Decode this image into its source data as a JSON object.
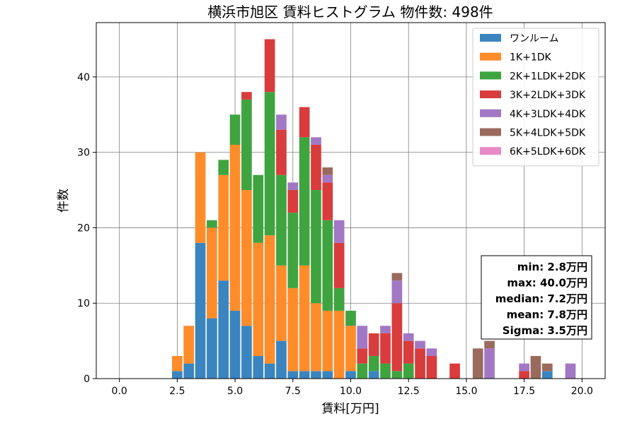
{
  "chart_data": {
    "type": "bar",
    "stacked": true,
    "title": "横浜市旭区 賃料ヒストグラム 物件数: 498件",
    "xlabel": "賃料[万円]",
    "ylabel": "件数",
    "xlim": [
      -1.0,
      21.0
    ],
    "ylim": [
      0,
      47.2
    ],
    "xticks": [
      0.0,
      2.5,
      5.0,
      7.5,
      10.0,
      12.5,
      15.0,
      17.5,
      20.0
    ],
    "xtick_labels": [
      "0.0",
      "2.5",
      "5.0",
      "7.5",
      "10.0",
      "12.5",
      "15.0",
      "17.5",
      "20.0"
    ],
    "yticks": [
      0,
      10,
      20,
      30,
      40
    ],
    "ytick_labels": [
      "0",
      "10",
      "20",
      "30",
      "40"
    ],
    "bin_width": 0.5,
    "bar_width": 0.45,
    "grid": true,
    "legend_position": "top-right",
    "x": [
      2.5,
      3.0,
      3.5,
      4.0,
      4.5,
      5.0,
      5.5,
      6.0,
      6.5,
      7.0,
      7.5,
      8.0,
      8.5,
      9.0,
      9.5,
      10.0,
      10.5,
      11.0,
      11.5,
      12.0,
      12.5,
      13.0,
      13.5,
      14.0,
      14.5,
      15.0,
      15.5,
      16.0,
      16.5,
      17.0,
      17.5,
      18.0,
      18.5,
      19.0,
      19.5,
      20.0
    ],
    "series": [
      {
        "name": "ワンルーム",
        "color": "#3a85c0",
        "values": [
          1,
          2,
          18,
          8,
          13,
          9,
          7,
          3,
          2,
          5,
          1,
          1,
          1,
          1,
          0,
          1,
          0,
          1,
          0,
          0,
          0,
          0,
          0,
          0,
          0,
          0,
          0,
          0,
          0,
          0,
          0,
          0,
          1,
          0,
          0,
          0
        ]
      },
      {
        "name": "1K+1DK",
        "color": "#ff8c2a",
        "values": [
          2,
          5,
          12,
          12,
          14,
          22,
          18,
          15,
          17,
          10,
          11,
          14,
          9,
          8,
          9,
          6,
          0,
          0,
          0,
          0,
          0,
          0,
          0,
          0,
          0,
          0,
          0,
          0,
          0,
          0,
          0,
          0,
          0,
          0,
          0,
          0
        ]
      },
      {
        "name": "2K+1LDK+2DK",
        "color": "#3fa43f",
        "values": [
          0,
          0,
          0,
          1,
          2,
          4,
          12,
          9,
          19,
          12,
          10,
          17,
          15,
          12,
          3,
          2,
          2,
          2,
          2,
          1,
          2,
          0,
          0,
          0,
          0,
          0,
          0,
          0,
          0,
          0,
          0,
          0,
          0,
          0,
          0,
          0
        ]
      },
      {
        "name": "3K+2LDK+3DK",
        "color": "#d93c3c",
        "values": [
          0,
          0,
          0,
          0,
          0,
          0,
          1,
          0,
          7,
          6,
          3,
          4,
          6,
          5,
          6,
          0,
          2,
          3,
          4,
          9,
          3,
          4,
          3,
          0,
          2,
          0,
          0,
          0,
          0,
          0,
          1,
          0,
          0,
          0,
          0,
          0
        ]
      },
      {
        "name": "4K+3LDK+4DK",
        "color": "#a278c4",
        "values": [
          0,
          0,
          0,
          0,
          0,
          0,
          0,
          0,
          0,
          2,
          1,
          0,
          1,
          1,
          3,
          0,
          3,
          0,
          1,
          3,
          1,
          1,
          1,
          0,
          0,
          0,
          0,
          4,
          0,
          0,
          1,
          0,
          0,
          0,
          2,
          0
        ]
      },
      {
        "name": "5K+4LDK+5DK",
        "color": "#9a6b5d",
        "values": [
          0,
          0,
          0,
          0,
          0,
          0,
          0,
          0,
          0,
          0,
          0,
          0,
          0,
          1,
          0,
          0,
          0,
          0,
          0,
          1,
          0,
          0,
          0,
          0,
          0,
          0,
          4,
          1,
          0,
          0,
          0,
          3,
          1,
          0,
          0,
          0
        ]
      },
      {
        "name": "6K+5LDK+6DK",
        "color": "#e78ac6",
        "values": [
          0,
          0,
          0,
          0,
          0,
          0,
          0,
          0,
          0,
          0,
          0,
          0,
          0,
          0,
          0,
          0,
          0,
          0,
          0,
          0,
          0,
          0,
          0,
          0,
          0,
          0,
          0,
          0,
          0,
          0,
          0,
          0,
          0,
          0,
          0,
          0
        ]
      }
    ],
    "stats_lines": [
      "min: 2.8万円",
      "max: 40.0万円",
      "median: 7.2万円",
      "mean: 7.8万円",
      "Sigma: 3.5万円"
    ]
  }
}
